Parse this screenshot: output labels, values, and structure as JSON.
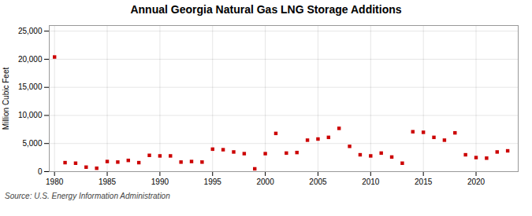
{
  "chart_data": {
    "type": "scatter",
    "title": "Annual Georgia Natural Gas LNG Storage Additions",
    "ylabel": "Million Cubic Feet",
    "source": "Source: U.S. Energy Information Administration",
    "color": "#cc0000",
    "marker": "square",
    "grid": true,
    "x": [
      1980,
      1981,
      1982,
      1983,
      1984,
      1985,
      1986,
      1987,
      1988,
      1989,
      1990,
      1991,
      1992,
      1993,
      1994,
      1995,
      1996,
      1997,
      1998,
      1999,
      2000,
      2001,
      2002,
      2003,
      2004,
      2005,
      2006,
      2007,
      2008,
      2009,
      2010,
      2011,
      2012,
      2013,
      2014,
      2015,
      2016,
      2017,
      2018,
      2019,
      2020,
      2021,
      2022,
      2023
    ],
    "values": [
      20400,
      1600,
      1500,
      800,
      600,
      1800,
      1700,
      2000,
      1600,
      2900,
      2800,
      2800,
      1700,
      1800,
      1700,
      4000,
      3900,
      3500,
      3200,
      500,
      3200,
      6800,
      3300,
      3400,
      5600,
      5800,
      6100,
      7700,
      4500,
      3000,
      2800,
      3300,
      2600,
      1500,
      7100,
      7000,
      6100,
      5600,
      6900,
      3000,
      2500,
      2400,
      3500,
      3700
    ],
    "xlim": [
      1979.5,
      2024
    ],
    "xticks": [
      1980,
      1985,
      1990,
      1995,
      2000,
      2005,
      2010,
      2015,
      2020
    ],
    "ylim": [
      0,
      26000
    ],
    "yticks": [
      0,
      {
        "value": 5000,
        "label": "5,000"
      },
      {
        "value": 10000,
        "label": "10,000"
      },
      {
        "value": 15000,
        "label": "15,000"
      },
      {
        "value": 20000,
        "label": "20,000"
      },
      {
        "value": 25000,
        "label": "25,000"
      }
    ]
  }
}
